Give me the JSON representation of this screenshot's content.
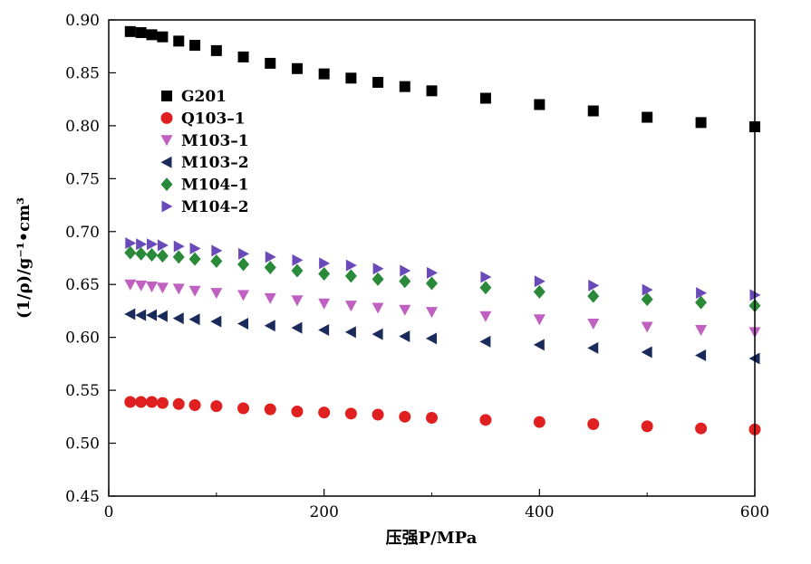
{
  "chart_data": {
    "type": "scatter",
    "xlabel": "压强P/MPa",
    "ylabel": "(1/ρ)/g⁻¹•cm³",
    "xlim": [
      0,
      600
    ],
    "ylim": [
      0.45,
      0.9
    ],
    "xticks": [
      "0",
      "200",
      "400",
      "600"
    ],
    "yticks": [
      "0.45",
      "0.50",
      "0.55",
      "0.60",
      "0.65",
      "0.70",
      "0.75",
      "0.80",
      "0.85",
      "0.90"
    ],
    "grid": false,
    "legend_position": "top-left",
    "x": [
      20,
      30,
      40,
      50,
      65,
      80,
      100,
      125,
      150,
      175,
      200,
      225,
      250,
      275,
      300,
      350,
      400,
      450,
      500,
      550,
      600
    ],
    "series": [
      {
        "name": "G201",
        "marker": "square",
        "color": "#000000",
        "values": [
          0.889,
          0.888,
          0.886,
          0.884,
          0.88,
          0.876,
          0.871,
          0.865,
          0.859,
          0.854,
          0.849,
          0.845,
          0.841,
          0.837,
          0.833,
          0.826,
          0.82,
          0.814,
          0.808,
          0.803,
          0.799
        ]
      },
      {
        "name": "Q103–1",
        "marker": "circle",
        "color": "#e02020",
        "values": [
          0.539,
          0.539,
          0.539,
          0.538,
          0.537,
          0.536,
          0.535,
          0.533,
          0.532,
          0.53,
          0.529,
          0.528,
          0.527,
          0.525,
          0.524,
          0.522,
          0.52,
          0.518,
          0.516,
          0.514,
          0.513
        ]
      },
      {
        "name": "M103–1",
        "marker": "triangle-down",
        "color": "#c060c0",
        "values": [
          0.65,
          0.649,
          0.648,
          0.647,
          0.646,
          0.644,
          0.642,
          0.64,
          0.637,
          0.635,
          0.632,
          0.63,
          0.628,
          0.626,
          0.624,
          0.62,
          0.617,
          0.613,
          0.61,
          0.607,
          0.605
        ]
      },
      {
        "name": "M103–2",
        "marker": "triangle-left",
        "color": "#1a2a5a",
        "values": [
          0.622,
          0.621,
          0.621,
          0.62,
          0.618,
          0.617,
          0.615,
          0.613,
          0.611,
          0.609,
          0.607,
          0.605,
          0.603,
          0.601,
          0.599,
          0.596,
          0.593,
          0.59,
          0.586,
          0.583,
          0.58
        ]
      },
      {
        "name": "M104–1",
        "marker": "diamond",
        "color": "#2a8a3a",
        "values": [
          0.68,
          0.679,
          0.678,
          0.677,
          0.676,
          0.674,
          0.672,
          0.669,
          0.666,
          0.663,
          0.66,
          0.658,
          0.655,
          0.653,
          0.651,
          0.647,
          0.643,
          0.639,
          0.636,
          0.633,
          0.63
        ]
      },
      {
        "name": "M104–2",
        "marker": "triangle-right",
        "color": "#6a4ab8",
        "values": [
          0.689,
          0.688,
          0.688,
          0.687,
          0.686,
          0.684,
          0.682,
          0.679,
          0.676,
          0.673,
          0.67,
          0.668,
          0.665,
          0.663,
          0.661,
          0.657,
          0.653,
          0.649,
          0.645,
          0.642,
          0.64
        ]
      }
    ]
  }
}
